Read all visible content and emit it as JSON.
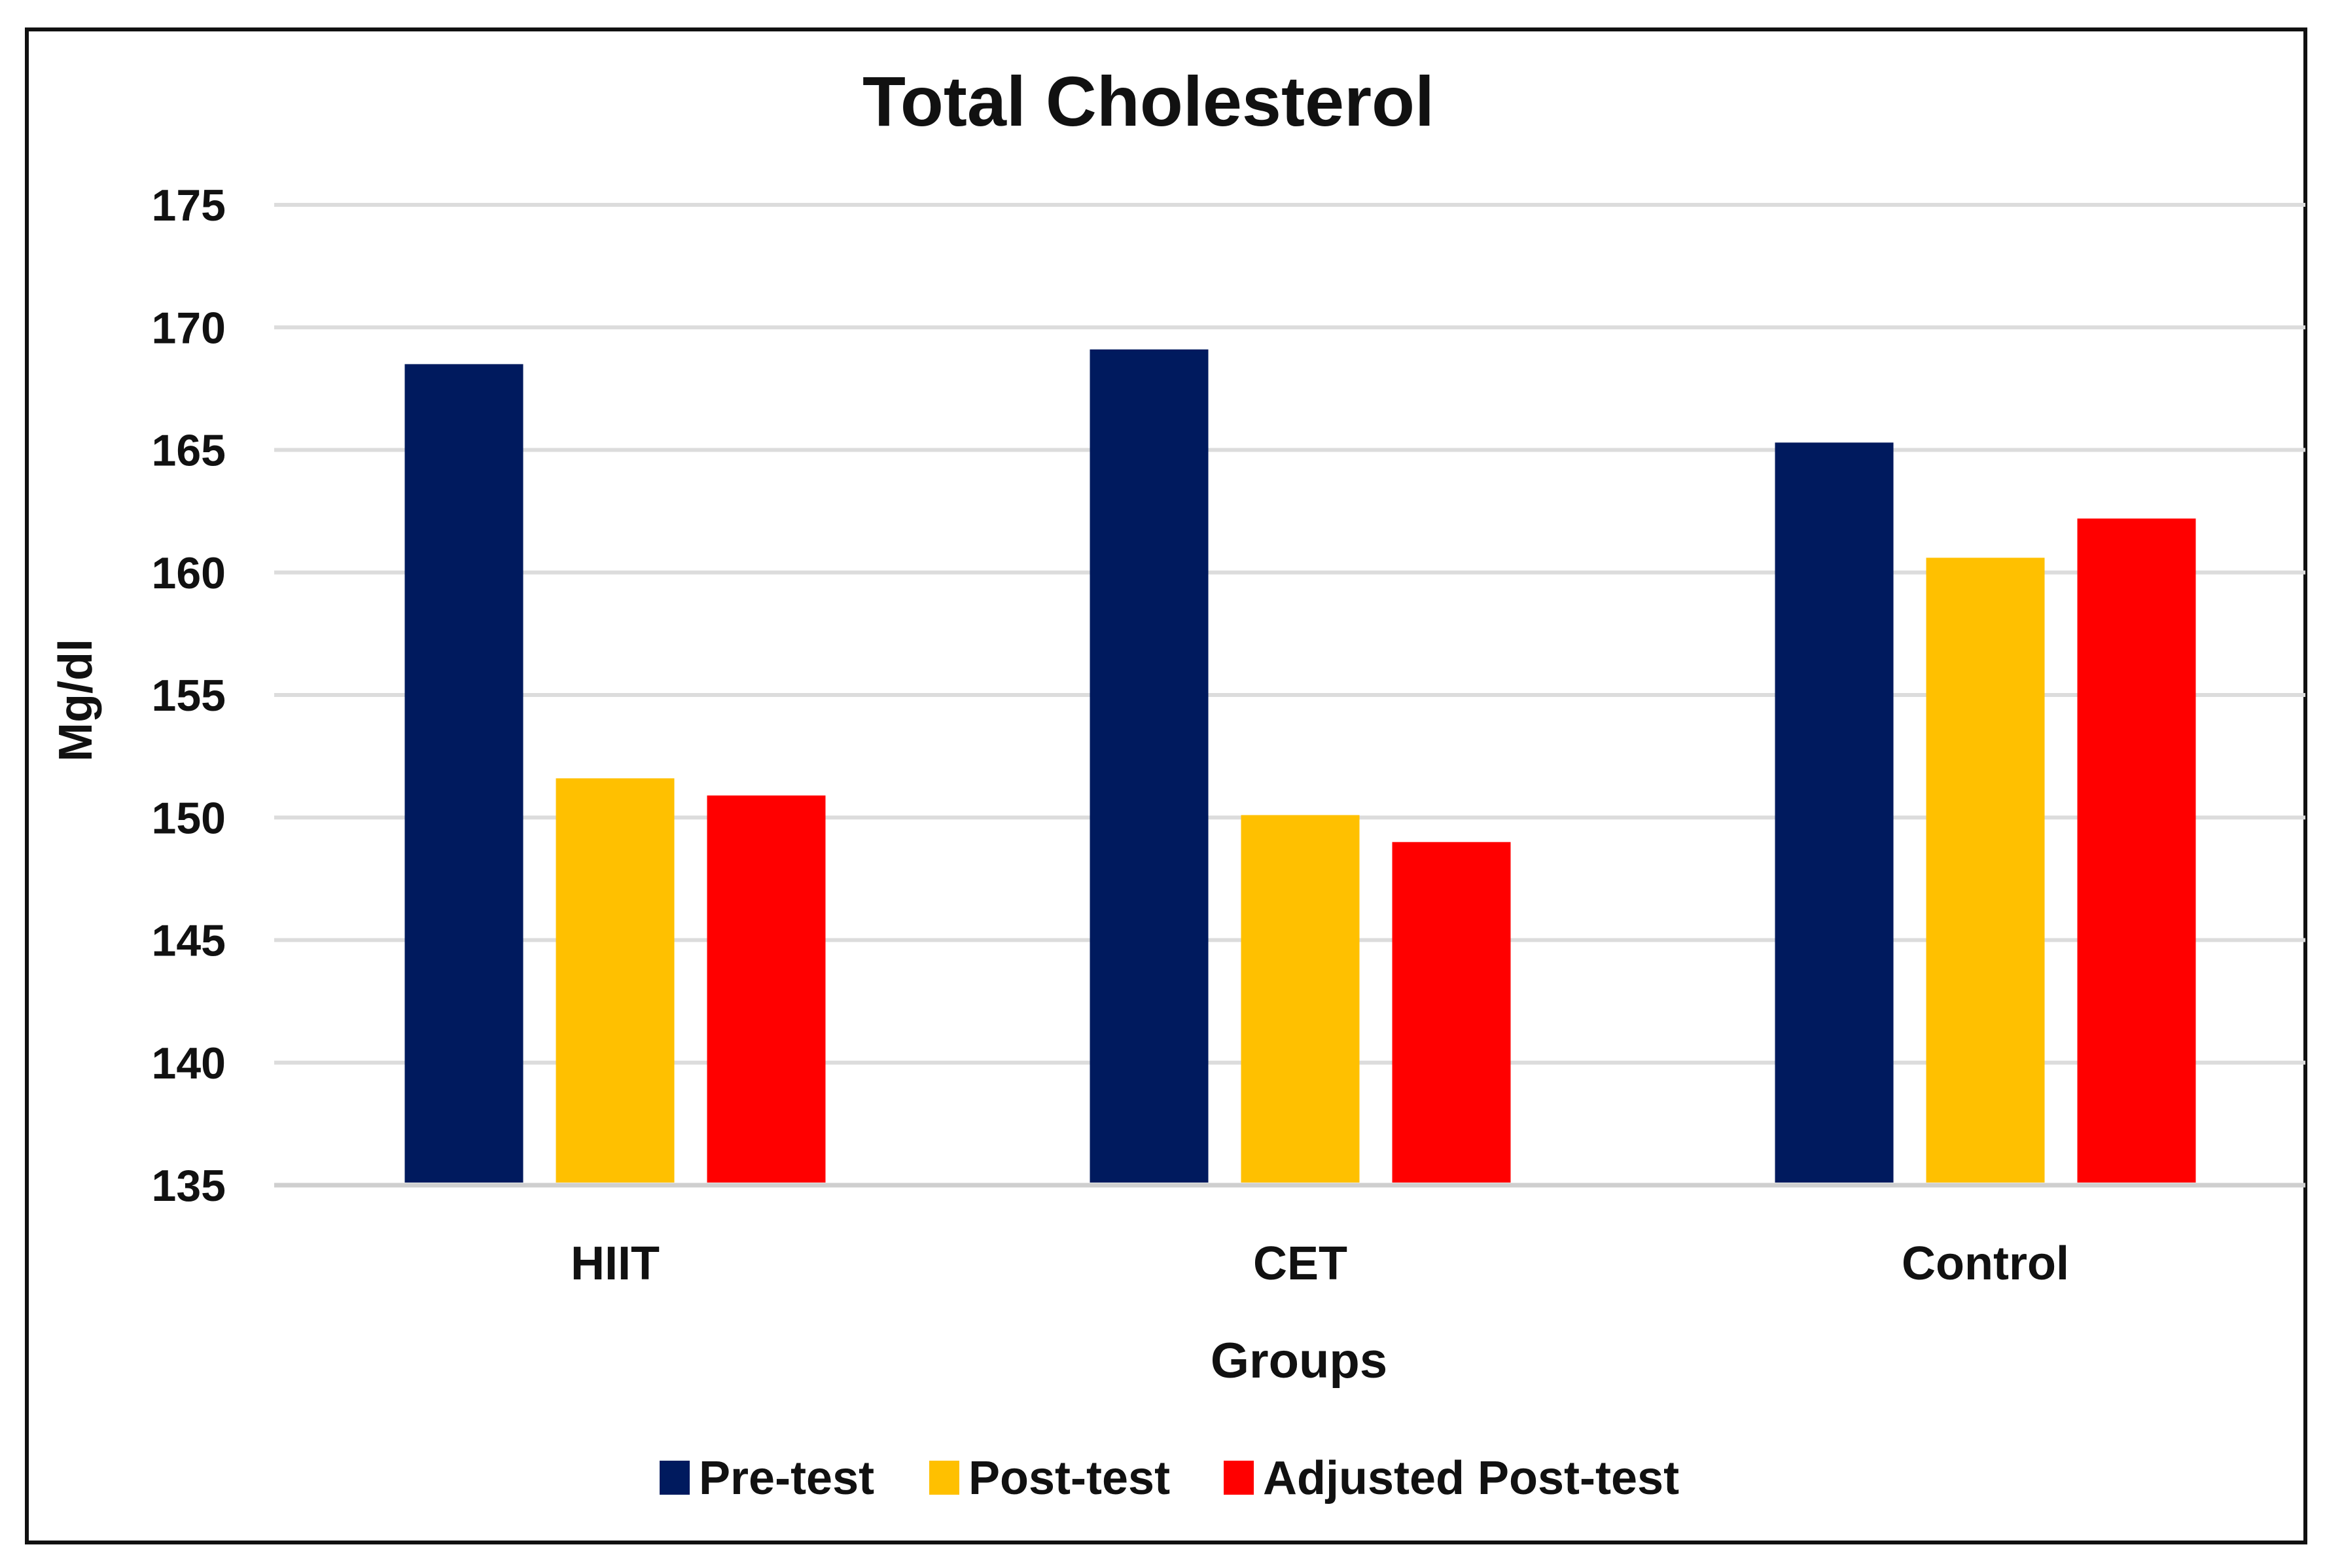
{
  "chart_data": {
    "type": "bar",
    "title": "Total Cholesterol",
    "xlabel": "Groups",
    "ylabel": "Mg/dl",
    "categories": [
      "HIIT",
      "CET",
      "Control"
    ],
    "series": [
      {
        "name": "Pre-test",
        "color": "#001a5e",
        "values": [
          168.5,
          169.1,
          165.3
        ]
      },
      {
        "name": "Post-test",
        "color": "#ffc000",
        "values": [
          151.6,
          150.1,
          160.6
        ]
      },
      {
        "name": "Adjusted Post-test",
        "color": "#ff0000",
        "values": [
          150.9,
          149.0,
          162.2
        ]
      }
    ],
    "ylim": [
      135,
      175
    ],
    "yticks": [
      135,
      140,
      145,
      150,
      155,
      160,
      165,
      170,
      175
    ],
    "grid": true,
    "legend": "bottom"
  }
}
